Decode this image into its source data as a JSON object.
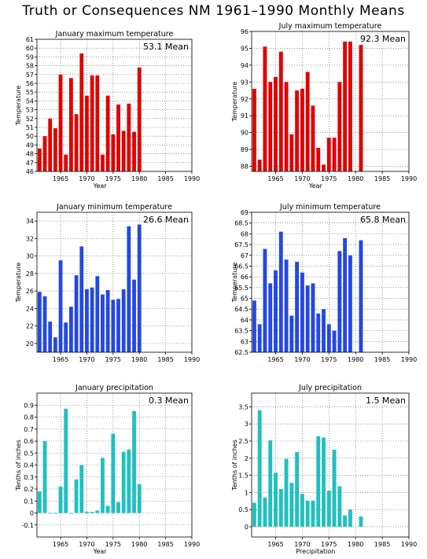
{
  "page_title": "Truth or Consequences NM  1961–1990 Monthly Means",
  "colors": {
    "red": "#e00000",
    "blue": "#2448e0",
    "teal": "#20c0c0",
    "grid": "#555555"
  },
  "chart_data": [
    {
      "type": "bar",
      "title": "January maximum temperature",
      "ylabel": "Temperature",
      "xlabel": "Year",
      "mean_label": "53.1 Mean",
      "color": "#e00000",
      "xlim": [
        1960.5,
        1990
      ],
      "x_ticks": [
        "1965",
        "1970",
        "1975",
        "1980",
        "1985",
        "1990"
      ],
      "ylim": [
        46,
        61
      ],
      "y_ticks": [
        "46",
        "47",
        "48",
        "49",
        "50",
        "51",
        "52",
        "53",
        "54",
        "55",
        "56",
        "57",
        "58",
        "59",
        "60",
        "61"
      ],
      "x": [
        1961,
        1962,
        1963,
        1964,
        1965,
        1966,
        1967,
        1968,
        1969,
        1970,
        1971,
        1972,
        1973,
        1974,
        1975,
        1976,
        1977,
        1978,
        1979,
        1980
      ],
      "values": [
        48.6,
        50.0,
        52.0,
        50.9,
        57.0,
        47.9,
        56.6,
        52.5,
        59.4,
        54.6,
        56.9,
        56.9,
        47.9,
        54.6,
        50.2,
        53.6,
        50.6,
        53.7,
        50.5,
        57.8
      ]
    },
    {
      "type": "bar",
      "title": "July maximum temperature",
      "ylabel": "Temperature",
      "xlabel": "Year",
      "mean_label": "92.3 Mean",
      "color": "#e00000",
      "xlim": [
        1960.5,
        1990
      ],
      "x_ticks": [
        "1965",
        "1970",
        "1975",
        "1980",
        "1985",
        "1990"
      ],
      "ylim": [
        87.7,
        96
      ],
      "y_ticks": [
        "88",
        "89",
        "90",
        "91",
        "92",
        "93",
        "94",
        "95",
        "96"
      ],
      "x": [
        1961,
        1962,
        1963,
        1964,
        1965,
        1966,
        1967,
        1968,
        1969,
        1970,
        1971,
        1972,
        1973,
        1974,
        1975,
        1976,
        1977,
        1978,
        1979,
        1981
      ],
      "values": [
        92.6,
        88.4,
        95.1,
        93.0,
        93.3,
        94.8,
        93.0,
        89.9,
        92.5,
        92.6,
        93.6,
        91.6,
        89.1,
        88.1,
        89.7,
        89.7,
        93.0,
        95.4,
        95.4,
        95.2
      ]
    },
    {
      "type": "bar",
      "title": "January minimum temperature",
      "ylabel": "Temperature",
      "xlabel": "",
      "mean_label": "26.6 Mean",
      "color": "#2448e0",
      "xlim": [
        1960.5,
        1990
      ],
      "x_ticks": [
        "1965",
        "1970",
        "1975",
        "1980",
        "1985",
        "1990"
      ],
      "ylim": [
        19,
        35
      ],
      "y_ticks": [
        "20",
        "22",
        "24",
        "26",
        "28",
        "30",
        "32",
        "34"
      ],
      "x": [
        1961,
        1962,
        1963,
        1964,
        1965,
        1966,
        1967,
        1968,
        1969,
        1970,
        1971,
        1972,
        1973,
        1974,
        1975,
        1976,
        1977,
        1978,
        1979,
        1980
      ],
      "values": [
        25.9,
        25.4,
        22.5,
        20.7,
        29.5,
        22.4,
        24.2,
        27.8,
        31.1,
        26.2,
        26.4,
        27.7,
        25.6,
        26.1,
        25.0,
        25.1,
        26.2,
        33.4,
        27.3,
        33.6
      ]
    },
    {
      "type": "bar",
      "title": "July minimum temperature",
      "ylabel": "Temperature",
      "xlabel": "",
      "mean_label": "65.8 Mean",
      "color": "#2448e0",
      "xlim": [
        1960.5,
        1990
      ],
      "x_ticks": [
        "1965",
        "1970",
        "1975",
        "1980",
        "1985",
        "1990"
      ],
      "ylim": [
        62.5,
        69
      ],
      "y_ticks": [
        "62.5",
        "63",
        "63.5",
        "64",
        "64.5",
        "65",
        "65.5",
        "66",
        "66.5",
        "67",
        "67.5",
        "68",
        "68.5",
        "69"
      ],
      "x": [
        1961,
        1962,
        1963,
        1964,
        1965,
        1966,
        1967,
        1968,
        1969,
        1970,
        1971,
        1972,
        1973,
        1974,
        1975,
        1976,
        1977,
        1978,
        1979,
        1981
      ],
      "values": [
        64.9,
        63.8,
        67.3,
        65.7,
        66.3,
        68.1,
        66.8,
        64.2,
        66.7,
        66.2,
        65.6,
        65.7,
        64.3,
        64.5,
        63.8,
        63.5,
        67.2,
        67.8,
        67.0,
        67.7
      ]
    },
    {
      "type": "bar",
      "title": "January precipitation",
      "ylabel": "Tenths of inches",
      "xlabel": "Year",
      "mean_label": "0.3 Mean",
      "color": "#20c0c0",
      "xlim": [
        1960.5,
        1990
      ],
      "x_ticks": [
        "1965",
        "1970",
        "1975",
        "1980",
        "1985",
        "1990"
      ],
      "ylim": [
        -0.2,
        1.0
      ],
      "y_ticks": [
        "-0.1",
        "0",
        "0.1",
        "0.2",
        "0.3",
        "0.4",
        "0.5",
        "0.6",
        "0.7",
        "0.8",
        "0.9"
      ],
      "x": [
        1961,
        1962,
        1963,
        1964,
        1965,
        1966,
        1967,
        1968,
        1969,
        1970,
        1971,
        1972,
        1973,
        1974,
        1975,
        1976,
        1977,
        1978,
        1979,
        1980
      ],
      "values": [
        0.18,
        0.6,
        0.0,
        0.0,
        0.22,
        0.87,
        0.0,
        0.28,
        0.4,
        0.01,
        0.01,
        0.02,
        0.46,
        0.06,
        0.66,
        0.09,
        0.51,
        0.53,
        0.85,
        0.24
      ]
    },
    {
      "type": "bar",
      "title": "July precipitation",
      "ylabel": "Tenths of inches",
      "xlabel": "Precipitation",
      "mean_label": "1.5 Mean",
      "color": "#20c0c0",
      "xlim": [
        1960.5,
        1990
      ],
      "x_ticks": [
        "1965",
        "1970",
        "1975",
        "1980",
        "1985",
        "1990"
      ],
      "ylim": [
        -0.3,
        3.9
      ],
      "y_ticks": [
        "0",
        "0.5",
        "1",
        "1.5",
        "2",
        "2.5",
        "3",
        "3.5"
      ],
      "x": [
        1961,
        1962,
        1963,
        1964,
        1965,
        1966,
        1967,
        1968,
        1969,
        1970,
        1971,
        1972,
        1973,
        1974,
        1975,
        1976,
        1977,
        1978,
        1979,
        1981
      ],
      "values": [
        0.7,
        3.4,
        0.85,
        2.52,
        1.58,
        1.1,
        1.98,
        1.28,
        2.18,
        0.96,
        0.76,
        0.76,
        2.64,
        2.6,
        1.05,
        2.25,
        1.18,
        0.33,
        0.5,
        0.3
      ]
    }
  ]
}
